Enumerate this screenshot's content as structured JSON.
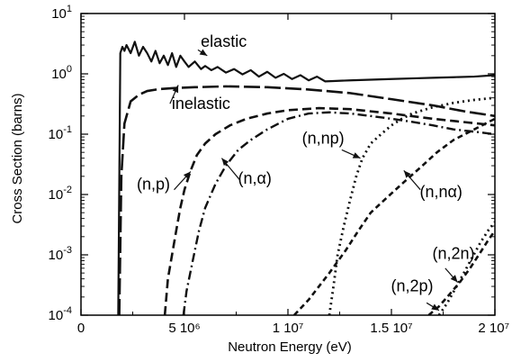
{
  "chart_data": {
    "type": "line",
    "xlabel": "Neutron Energy (eV)",
    "ylabel": "Cross Section (barns)",
    "xlim": [
      0,
      20000000
    ],
    "ylim": [
      0.0001,
      10
    ],
    "y_scale": "log",
    "grid": false,
    "x_ticks": [
      {
        "value": 0,
        "label": "0"
      },
      {
        "value": 5000000,
        "label": "5 10⁶"
      },
      {
        "value": 10000000,
        "label": "1 10⁷"
      },
      {
        "value": 15000000,
        "label": "1.5 10⁷"
      },
      {
        "value": 20000000,
        "label": "2 10⁷"
      }
    ],
    "y_ticks": [
      {
        "value": 0.0001,
        "base": "10",
        "exp": "-4"
      },
      {
        "value": 0.001,
        "base": "10",
        "exp": "-3"
      },
      {
        "value": 0.01,
        "base": "10",
        "exp": "-2"
      },
      {
        "value": 0.1,
        "base": "10",
        "exp": "-1"
      },
      {
        "value": 1,
        "base": "10",
        "exp": "0"
      },
      {
        "value": 10,
        "base": "10",
        "exp": "1"
      }
    ],
    "series": [
      {
        "name": "elastic",
        "style": "solid",
        "x": [
          1800000,
          1900000,
          2000000,
          2100000,
          2200000,
          2400000,
          2600000,
          2800000,
          3000000,
          3200000,
          3400000,
          3600000,
          3800000,
          4000000,
          4200000,
          4400000,
          4600000,
          4800000,
          5000000,
          5200000,
          5500000,
          5800000,
          6000000,
          6300000,
          6600000,
          7000000,
          7400000,
          7800000,
          8200000,
          8600000,
          9000000,
          9400000,
          9800000,
          10200000,
          10600000,
          11000000,
          11400000,
          11800000,
          12200000,
          13000000,
          14000000,
          15000000,
          16000000,
          17000000,
          18000000,
          19000000,
          20000000
        ],
        "y": [
          0.0001,
          2.2,
          2.8,
          2.4,
          3.0,
          2.2,
          3.4,
          2.0,
          2.8,
          2.2,
          1.6,
          2.4,
          1.5,
          2.0,
          1.4,
          2.2,
          1.3,
          2.0,
          1.6,
          1.3,
          1.6,
          1.2,
          1.35,
          1.15,
          1.3,
          1.05,
          1.2,
          0.98,
          1.15,
          0.9,
          1.08,
          0.86,
          1.0,
          0.82,
          0.95,
          0.78,
          0.9,
          0.75,
          0.76,
          0.78,
          0.8,
          0.82,
          0.84,
          0.86,
          0.88,
          0.9,
          0.95
        ]
      },
      {
        "name": "inelastic",
        "style": "longdash",
        "x": [
          1850000,
          1950000,
          2100000,
          2400000,
          2800000,
          3200000,
          3800000,
          4500000,
          5500000,
          7000000,
          9000000,
          11000000,
          13000000,
          15000000,
          17000000,
          18500000,
          20000000
        ],
        "y": [
          0.0001,
          0.02,
          0.15,
          0.35,
          0.45,
          0.52,
          0.56,
          0.58,
          0.6,
          0.62,
          0.6,
          0.55,
          0.48,
          0.38,
          0.3,
          0.24,
          0.2
        ]
      },
      {
        "name": "(n,p)",
        "style": "dash",
        "x": [
          4050000,
          4200000,
          4400000,
          4600000,
          4800000,
          5000000,
          5300000,
          5600000,
          6000000,
          6500000,
          7200000,
          8000000,
          9000000,
          10000000,
          11500000,
          13000000,
          15000000,
          17000000,
          20000000
        ],
        "y": [
          0.0001,
          0.0004,
          0.001,
          0.0025,
          0.006,
          0.012,
          0.025,
          0.045,
          0.07,
          0.1,
          0.14,
          0.18,
          0.22,
          0.25,
          0.27,
          0.26,
          0.22,
          0.18,
          0.14
        ]
      },
      {
        "name": "(n,α)",
        "style": "dashdot",
        "x": [
          4950000,
          5100000,
          5400000,
          5700000,
          6000000,
          6500000,
          7000000,
          7600000,
          8200000,
          9000000,
          10000000,
          11000000,
          12000000,
          13000000,
          14000000,
          15000000,
          16000000,
          17000000,
          18000000,
          19000000,
          20000000
        ],
        "y": [
          0.0001,
          0.00025,
          0.0008,
          0.0025,
          0.006,
          0.015,
          0.03,
          0.055,
          0.08,
          0.12,
          0.18,
          0.22,
          0.23,
          0.22,
          0.2,
          0.18,
          0.16,
          0.14,
          0.12,
          0.11,
          0.1
        ]
      },
      {
        "name": "(n,np)",
        "style": "dot",
        "x": [
          12000000,
          12200000,
          12400000,
          12700000,
          13000000,
          13300000,
          13600000,
          14000000,
          14500000,
          15000000,
          15500000,
          16000000,
          17000000,
          18000000,
          19000000,
          20000000
        ],
        "y": [
          0.0001,
          0.0003,
          0.001,
          0.003,
          0.008,
          0.02,
          0.04,
          0.07,
          0.1,
          0.14,
          0.18,
          0.22,
          0.28,
          0.33,
          0.37,
          0.4
        ]
      },
      {
        "name": "(n,nα)",
        "style": "shortdash",
        "x": [
          10300000,
          11000000,
          12000000,
          12800000,
          13400000,
          14000000,
          14800000,
          15600000,
          16400000,
          17200000,
          18000000,
          19000000,
          20000000
        ],
        "y": [
          0.0001,
          0.00018,
          0.0005,
          0.0012,
          0.0025,
          0.005,
          0.009,
          0.016,
          0.028,
          0.05,
          0.08,
          0.12,
          0.18
        ]
      },
      {
        "name": "(n,2n)",
        "style": "dot",
        "x": [
          17300000,
          17700000,
          18100000,
          18500000,
          18900000,
          19300000,
          19700000,
          20000000
        ],
        "y": [
          0.0001,
          0.00016,
          0.00028,
          0.0005,
          0.0009,
          0.0016,
          0.0026,
          0.0035
        ]
      },
      {
        "name": "(n,2p)",
        "style": "shortdash",
        "x": [
          16800000,
          17300000,
          17800000,
          18300000,
          18800000,
          19300000,
          19700000,
          20000000
        ],
        "y": [
          0.0001,
          0.00014,
          0.00022,
          0.00035,
          0.0006,
          0.0011,
          0.0018,
          0.0025
        ]
      }
    ],
    "annotations": [
      {
        "label": "elastic",
        "tx": 6900000,
        "ty": 2.8,
        "ax": 6100000,
        "ay": 2.0,
        "arrow_from": [
          5650000,
          2.5
        ]
      },
      {
        "label": "inelastic",
        "tx": 5800000,
        "ty": 0.26,
        "ax": 4300000,
        "ay": 0.32,
        "arrow_to": [
          4700000,
          0.65
        ]
      },
      {
        "label": "(n,p)",
        "tx": 3500000,
        "ty": 0.012,
        "ax": 5300000,
        "ay": 0.024,
        "arrow_from": [
          4500000,
          0.012
        ]
      },
      {
        "label": "(n,α)",
        "tx": 8400000,
        "ty": 0.015,
        "ax": 6800000,
        "ay": 0.04,
        "arrow_from": [
          7700000,
          0.017
        ]
      },
      {
        "label": "(n,np)",
        "tx": 11700000,
        "ty": 0.07,
        "ax": 13500000,
        "ay": 0.04,
        "arrow_from": [
          12600000,
          0.055
        ]
      },
      {
        "label": "(n,nα)",
        "tx": 17400000,
        "ty": 0.009,
        "ax": 15600000,
        "ay": 0.025,
        "arrow_from": [
          16400000,
          0.012
        ]
      },
      {
        "label": "(n,2n)",
        "tx": 18000000,
        "ty": 0.00085,
        "ax": 18200000,
        "ay": 0.00035,
        "arrow_from": [
          17600000,
          0.0006
        ]
      },
      {
        "label": "(n,2p)",
        "tx": 16000000,
        "ty": 0.00025,
        "ax": 17300000,
        "ay": 0.00012,
        "arrow_from": [
          16700000,
          0.00016
        ]
      }
    ]
  }
}
